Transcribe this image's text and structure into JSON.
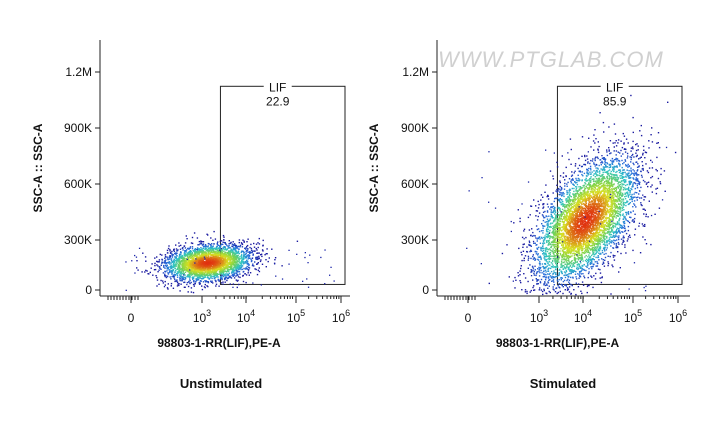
{
  "chart_data": [
    {
      "type": "scatter",
      "caption": "Unstimulated",
      "xlabel": "98803-1-RR(LIF),PE-A",
      "ylabel": "SSC-A :: SSC-A",
      "xticks": [
        {
          "base": "0",
          "exp": ""
        },
        {
          "base": "10",
          "exp": "3"
        },
        {
          "base": "10",
          "exp": "4"
        },
        {
          "base": "10",
          "exp": "5"
        },
        {
          "base": "10",
          "exp": "6"
        }
      ],
      "yticks": [
        "0",
        "300K",
        "600K",
        "900K",
        "1.2M"
      ],
      "ylim": [
        0,
        1350000
      ],
      "gate": {
        "name": "LIF",
        "value": "22.9",
        "x_from": 2500,
        "x_to": 1000000,
        "y_from": 30000,
        "y_to": 1100000
      },
      "population": {
        "center_x": 1300,
        "center_y": 150000,
        "cells": 3000
      }
    },
    {
      "type": "scatter",
      "caption": "Stimulated",
      "xlabel": "98803-1-RR(LIF),PE-A",
      "ylabel": "SSC-A :: SSC-A",
      "xticks": [
        {
          "base": "0",
          "exp": ""
        },
        {
          "base": "10",
          "exp": "3"
        },
        {
          "base": "10",
          "exp": "4"
        },
        {
          "base": "10",
          "exp": "5"
        },
        {
          "base": "10",
          "exp": "6"
        }
      ],
      "yticks": [
        "0",
        "300K",
        "600K",
        "900K",
        "1.2M"
      ],
      "ylim": [
        0,
        1350000
      ],
      "gate": {
        "name": "LIF",
        "value": "85.9",
        "x_from": 2500,
        "x_to": 1000000,
        "y_from": 30000,
        "y_to": 1100000
      },
      "population": {
        "center_x": 10000,
        "center_y": 380000,
        "cells": 5000
      }
    }
  ],
  "watermark": "WWW.PTGLAB.COM",
  "colors": {
    "low": "#1a1aa0",
    "mid": "#2ec4c4",
    "high_mid": "#d8e020",
    "high": "#e03010"
  }
}
